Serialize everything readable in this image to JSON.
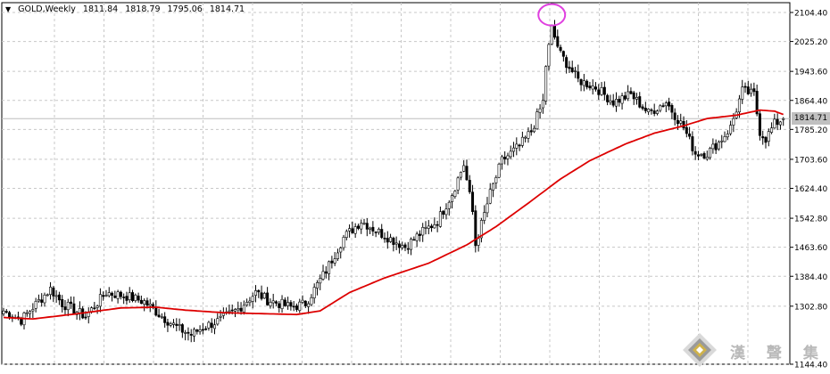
{
  "header": {
    "symbol": "GOLD,Weekly",
    "ohlc": [
      "1811.84",
      "1818.79",
      "1795.06",
      "1814.71"
    ]
  },
  "current_price_label": "1814.71",
  "watermark_text": "漢 聲 集 團",
  "colors": {
    "up": "#000000",
    "down": "#000000",
    "ma": "#dd0000",
    "grid": "#c8c8c8",
    "highlight_circle": "#e040e0"
  },
  "chart_data": {
    "type": "candlestick",
    "title": "GOLD,Weekly",
    "ylim": [
      1144.4,
      2104.4
    ],
    "y_ticks": [
      "2104.40",
      "2025.20",
      "1943.60",
      "1864.40",
      "1785.20",
      "1703.60",
      "1624.40",
      "1542.80",
      "1463.60",
      "1384.40",
      "1302.80",
      "1144.40"
    ],
    "grid": true,
    "anchors": [
      [
        0,
        1290
      ],
      [
        6,
        1265
      ],
      [
        10,
        1300
      ],
      [
        16,
        1350
      ],
      [
        20,
        1310
      ],
      [
        28,
        1275
      ],
      [
        35,
        1340
      ],
      [
        42,
        1330
      ],
      [
        48,
        1315
      ],
      [
        54,
        1275
      ],
      [
        60,
        1240
      ],
      [
        64,
        1225
      ],
      [
        68,
        1245
      ],
      [
        74,
        1265
      ],
      [
        80,
        1295
      ],
      [
        86,
        1340
      ],
      [
        90,
        1320
      ],
      [
        98,
        1300
      ],
      [
        103,
        1310
      ],
      [
        110,
        1400
      ],
      [
        116,
        1490
      ],
      [
        122,
        1535
      ],
      [
        128,
        1505
      ],
      [
        134,
        1478
      ],
      [
        137,
        1465
      ],
      [
        142,
        1500
      ],
      [
        148,
        1535
      ],
      [
        153,
        1610
      ],
      [
        157,
        1690
      ],
      [
        160,
        1560
      ],
      [
        161,
        1470
      ],
      [
        166,
        1610
      ],
      [
        170,
        1700
      ],
      [
        176,
        1740
      ],
      [
        180,
        1780
      ],
      [
        184,
        1860
      ],
      [
        185,
        1960
      ],
      [
        187,
        2060
      ],
      [
        190,
        1990
      ],
      [
        196,
        1920
      ],
      [
        202,
        1900
      ],
      [
        208,
        1860
      ],
      [
        214,
        1880
      ],
      [
        220,
        1830
      ],
      [
        226,
        1860
      ],
      [
        232,
        1790
      ],
      [
        236,
        1720
      ],
      [
        240,
        1720
      ],
      [
        244,
        1750
      ],
      [
        248,
        1790
      ],
      [
        252,
        1890
      ],
      [
        256,
        1880
      ],
      [
        258,
        1780
      ],
      [
        260,
        1760
      ],
      [
        263,
        1800
      ],
      [
        266,
        1814.71
      ]
    ],
    "ma_anchors": [
      [
        0,
        1272
      ],
      [
        10,
        1268
      ],
      [
        25,
        1282
      ],
      [
        40,
        1298
      ],
      [
        52,
        1300
      ],
      [
        62,
        1292
      ],
      [
        75,
        1285
      ],
      [
        90,
        1282
      ],
      [
        100,
        1280
      ],
      [
        108,
        1290
      ],
      [
        118,
        1340
      ],
      [
        130,
        1380
      ],
      [
        145,
        1420
      ],
      [
        158,
        1470
      ],
      [
        168,
        1520
      ],
      [
        180,
        1590
      ],
      [
        190,
        1650
      ],
      [
        200,
        1700
      ],
      [
        212,
        1745
      ],
      [
        222,
        1775
      ],
      [
        232,
        1795
      ],
      [
        240,
        1815
      ],
      [
        250,
        1824
      ],
      [
        258,
        1838
      ],
      [
        263,
        1835
      ],
      [
        266,
        1826
      ]
    ],
    "last_candle": {
      "open": 1811.84,
      "high": 1818.79,
      "low": 1795.06,
      "close": 1814.71
    },
    "series": [
      {
        "name": "",
        "kind": "candles"
      },
      {
        "name": "",
        "kind": "moving-average"
      }
    ]
  }
}
